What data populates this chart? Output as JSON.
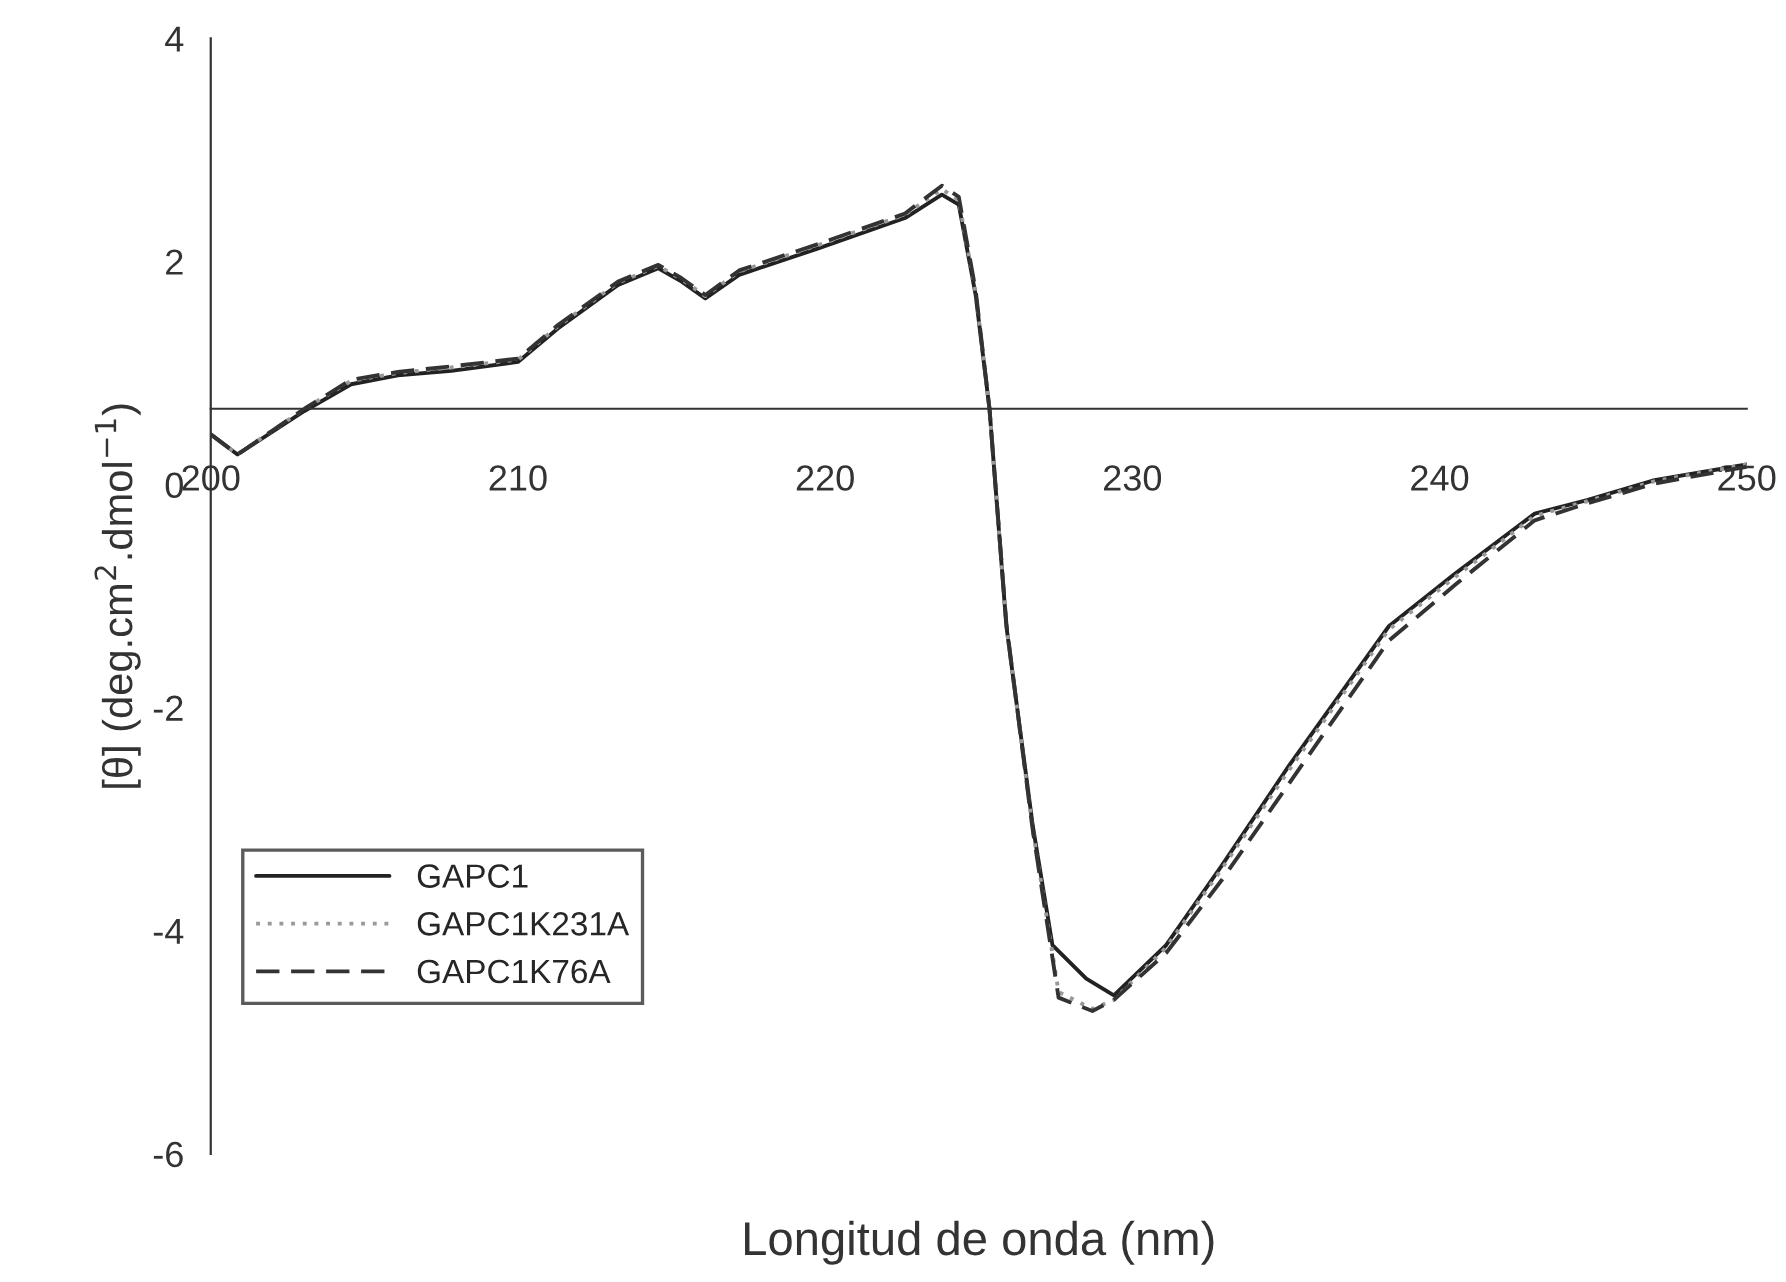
{
  "chart_data": {
    "type": "line",
    "xlabel": "Longitud de onda (nm)",
    "ylabel": "[θ] (deg.cm$^{2}$.dmol$^{−1}$)",
    "xlim": [
      200,
      250
    ],
    "xticks": [
      200,
      210,
      220,
      230,
      240,
      250
    ],
    "ylim": [
      -6,
      4
    ],
    "yticks": [
      -6,
      -4,
      -2,
      0,
      2,
      4
    ],
    "legend": "bottom left",
    "grid": false,
    "series": [
      {
        "name": "GAPC1",
        "color": "#222222",
        "line_style": "solid",
        "x": [
          200.0,
          200.87,
          203.05,
          204.57,
          206.09,
          207.83,
          210.0,
          211.3,
          213.26,
          214.57,
          215.33,
          216.1,
          217.2,
          219.8,
          222.6,
          223.8,
          224.35,
          224.9,
          225.35,
          225.9,
          226.76,
          227.4,
          228.5,
          229.4,
          231.1,
          232.9,
          235.1,
          238.35,
          240.5,
          243.1,
          244.8,
          247.0,
          250.0
        ],
        "values": [
          0.45,
          0.27,
          0.66,
          0.9,
          0.98,
          1.02,
          1.1,
          1.4,
          1.79,
          1.94,
          1.82,
          1.67,
          1.88,
          2.12,
          2.39,
          2.6,
          2.51,
          1.7,
          0.68,
          -1.27,
          -3.06,
          -4.13,
          -4.43,
          -4.58,
          -4.13,
          -3.42,
          -2.52,
          -1.27,
          -0.8,
          -0.26,
          -0.14,
          0.04,
          0.18
        ]
      },
      {
        "name": "GAPC1K231A",
        "color": "#999999",
        "line_style": "dotted",
        "x": [
          200.0,
          200.87,
          203.05,
          204.57,
          206.09,
          207.83,
          210.0,
          211.3,
          213.26,
          214.57,
          215.33,
          216.1,
          217.2,
          219.8,
          222.6,
          223.8,
          224.35,
          224.9,
          225.35,
          225.9,
          226.76,
          227.6,
          228.7,
          229.4,
          231.1,
          232.9,
          235.1,
          238.35,
          240.5,
          243.1,
          244.8,
          247.0,
          250.0
        ],
        "values": [
          0.45,
          0.27,
          0.68,
          0.93,
          1.0,
          1.05,
          1.12,
          1.42,
          1.81,
          1.96,
          1.84,
          1.69,
          1.91,
          2.15,
          2.42,
          2.65,
          2.55,
          1.72,
          0.68,
          -1.27,
          -3.1,
          -4.55,
          -4.7,
          -4.62,
          -4.15,
          -3.45,
          -2.56,
          -1.3,
          -0.83,
          -0.28,
          -0.15,
          0.03,
          0.18
        ]
      },
      {
        "name": "GAPC1K76A",
        "color": "#333333",
        "line_style": "dashed",
        "x": [
          200.0,
          200.87,
          203.05,
          204.57,
          206.09,
          207.83,
          210.0,
          211.3,
          213.26,
          214.57,
          215.33,
          216.1,
          217.2,
          219.8,
          222.6,
          223.8,
          224.35,
          224.9,
          225.35,
          225.9,
          226.76,
          227.6,
          228.7,
          229.4,
          231.1,
          232.9,
          235.1,
          238.35,
          240.5,
          243.1,
          244.8,
          247.0,
          250.0
        ],
        "values": [
          0.45,
          0.27,
          0.68,
          0.94,
          1.01,
          1.06,
          1.13,
          1.43,
          1.82,
          1.97,
          1.85,
          1.7,
          1.92,
          2.16,
          2.43,
          2.68,
          2.58,
          1.74,
          0.68,
          -1.25,
          -3.1,
          -4.6,
          -4.72,
          -4.62,
          -4.2,
          -3.55,
          -2.68,
          -1.4,
          -0.9,
          -0.32,
          -0.17,
          0.01,
          0.16
        ]
      }
    ]
  }
}
